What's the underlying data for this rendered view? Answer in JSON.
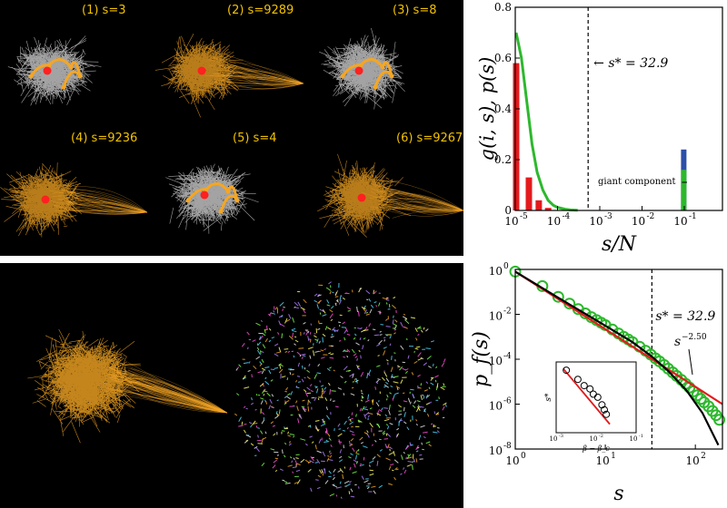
{
  "colors": {
    "background_black": "#000000",
    "giant_orange": "#f5a623",
    "cluster_white": "#e8e8e8",
    "seed_red": "#ff2020",
    "label_yellow": "#f2c200",
    "bar_red": "#e41a1c",
    "bar_blue": "#2c4fa8",
    "curve_green": "#2db82d",
    "fit_red": "#e41a1c"
  },
  "top_left": {
    "networks": [
      {
        "label": "(1) s=3",
        "type": "small-cluster"
      },
      {
        "label": "(2) s=9289",
        "type": "giant"
      },
      {
        "label": "(3) s=8",
        "type": "small-cluster"
      },
      {
        "label": "(4) s=9236",
        "type": "giant"
      },
      {
        "label": "(5) s=4",
        "type": "small-cluster"
      },
      {
        "label": "(6) s=9267",
        "type": "giant"
      }
    ]
  },
  "chart_data": [
    {
      "type": "bar",
      "xlabel": "s/N",
      "ylabel": "g(i, s), p(s)",
      "xscale": "log",
      "xlim": [
        1e-05,
        0.8
      ],
      "ylim": [
        0,
        0.8
      ],
      "yticks": [
        "0",
        "0.2",
        "0.4",
        "0.6",
        "0.8"
      ],
      "xticks": [
        "10",
        "10",
        "10",
        "10",
        "10"
      ],
      "xtick_exponents": [
        "-5",
        "-4",
        "-3",
        "-2",
        "-1"
      ],
      "threshold_label": "s* = 32.9",
      "threshold_x": 0.00053,
      "annotation": "giant component",
      "bars": [
        {
          "x": 1.05e-05,
          "value": 0.58,
          "series": "g(i, s)"
        },
        {
          "x": 2.1e-05,
          "value": 0.13,
          "series": "g(i, s)"
        },
        {
          "x": 3.6e-05,
          "value": 0.04,
          "series": "g(i, s)"
        },
        {
          "x": 6e-05,
          "value": 0.01,
          "series": "g(i, s)"
        },
        {
          "x": 0.097,
          "value": 0.24,
          "series": "giant blue"
        },
        {
          "x": 0.097,
          "value": 0.16,
          "series": "giant green"
        }
      ],
      "curve_x": [
        1.05e-05,
        1.4e-05,
        1.9e-05,
        2.5e-05,
        3.3e-05,
        4.5e-05,
        6e-05,
        8e-05,
        0.0001,
        0.00015,
        0.0002,
        0.0003
      ],
      "curve_y": [
        0.7,
        0.6,
        0.42,
        0.26,
        0.15,
        0.08,
        0.04,
        0.02,
        0.012,
        0.005,
        0.002,
        0.001
      ],
      "giant_green_x": 0.097,
      "giant_green_y": 0.16
    },
    {
      "type": "scatter",
      "xlabel": "s",
      "ylabel": "p_f(s)",
      "xscale": "log",
      "yscale": "log",
      "xlim": [
        1,
        200
      ],
      "ylim": [
        1e-08,
        1
      ],
      "xticks": [
        "10",
        "10",
        "10"
      ],
      "xtick_exponents": [
        "0",
        "1",
        "2"
      ],
      "yticks": [
        "10",
        "10",
        "10",
        "10",
        "10"
      ],
      "ytick_exponents": [
        "0",
        "-2",
        "-4",
        "-6",
        "-8"
      ],
      "threshold_label": "s* = 32.9",
      "threshold_x": 32.9,
      "fit_label": "s",
      "fit_exponent": "−2.50",
      "points": [
        [
          1,
          0.8
        ],
        [
          2,
          0.18
        ],
        [
          3,
          0.06
        ],
        [
          4,
          0.03
        ],
        [
          5,
          0.017
        ],
        [
          6,
          0.011
        ],
        [
          7,
          0.0075
        ],
        [
          8,
          0.0055
        ],
        [
          9,
          0.0042
        ],
        [
          10,
          0.0033
        ],
        [
          12,
          0.0021
        ],
        [
          14,
          0.0014
        ],
        [
          16,
          0.001
        ],
        [
          18,
          0.00075
        ],
        [
          20,
          0.00058
        ],
        [
          24,
          0.00036
        ],
        [
          28,
          0.00024
        ],
        [
          32,
          0.00016
        ],
        [
          36,
          0.00011
        ],
        [
          40,
          8e-05
        ],
        [
          45,
          5.5e-05
        ],
        [
          50,
          3.8e-05
        ],
        [
          56,
          2.6e-05
        ],
        [
          62,
          1.8e-05
        ],
        [
          70,
          1.2e-05
        ],
        [
          78,
          8e-06
        ],
        [
          86,
          5.5e-06
        ],
        [
          95,
          3.7e-06
        ],
        [
          105,
          2.5e-06
        ],
        [
          115,
          1.7e-06
        ],
        [
          125,
          1.2e-06
        ],
        [
          140,
          8e-07
        ],
        [
          155,
          5e-07
        ],
        [
          170,
          3.2e-07
        ],
        [
          185,
          2e-07
        ]
      ],
      "red_line": [
        [
          1,
          0.8
        ],
        [
          200,
          1e-06
        ]
      ],
      "black_curve": [
        [
          1,
          0.8
        ],
        [
          3,
          0.055
        ],
        [
          10,
          0.0031
        ],
        [
          20,
          0.00058
        ],
        [
          33,
          0.00013
        ],
        [
          50,
          3e-05
        ],
        [
          80,
          4e-06
        ],
        [
          120,
          4e-07
        ],
        [
          180,
          1.5e-08
        ]
      ],
      "inset": {
        "xlabel": "β − β_c",
        "ylabel": "s*",
        "xticks": [
          "10",
          "10",
          "10"
        ],
        "xtick_exponents": [
          "-3",
          "-2",
          "-1"
        ],
        "points": [
          [
            0.0018,
            0.9
          ],
          [
            0.0035,
            0.62
          ],
          [
            0.005,
            0.48
          ],
          [
            0.007,
            0.42
          ],
          [
            0.0085,
            0.34
          ],
          [
            0.011,
            0.3
          ],
          [
            0.014,
            0.22
          ],
          [
            0.016,
            0.18
          ],
          [
            0.018,
            0.15
          ]
        ],
        "fit": [
          [
            0.0015,
            0.96
          ],
          [
            0.022,
            0.1
          ]
        ]
      }
    }
  ]
}
